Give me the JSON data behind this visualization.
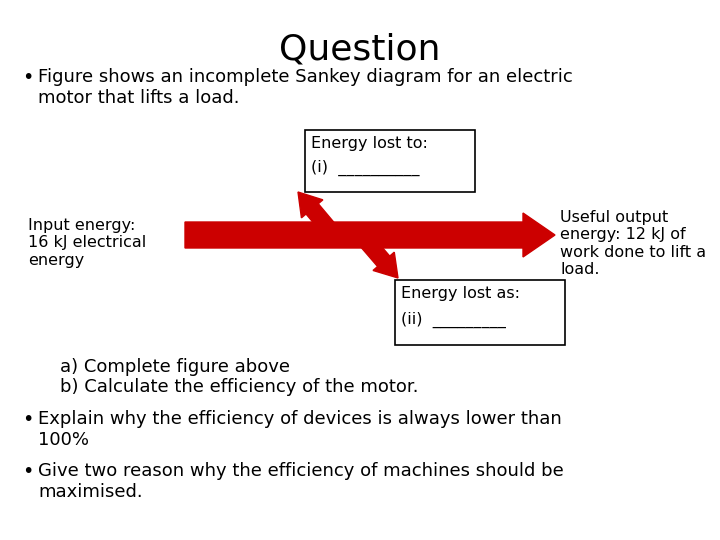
{
  "title": "Question",
  "bullet1": "Figure shows an incomplete Sankey diagram for an electric\nmotor that lifts a load.",
  "bullet2": "Explain why the efficiency of devices is always lower than\n100%",
  "bullet3": "Give two reason why the efficiency of machines should be\nmaximised.",
  "sub_a": "a) Complete figure above",
  "sub_b": "b) Calculate the efficiency of the motor.",
  "input_label": "Input energy:\n16 kJ electrical\nenergy",
  "output_label": "Useful output\nenergy: 12 kJ of\nwork done to lift a\nload.",
  "box1_title": "Energy lost to:",
  "box1_line": "(i)  __________",
  "box2_title": "Energy lost as:",
  "box2_line": "(ii)  _________",
  "arrow_color": "#cc0000",
  "bg_color": "#ffffff",
  "text_color": "#000000",
  "title_fontsize": 26,
  "body_fontsize": 13,
  "small_fontsize": 11.5
}
